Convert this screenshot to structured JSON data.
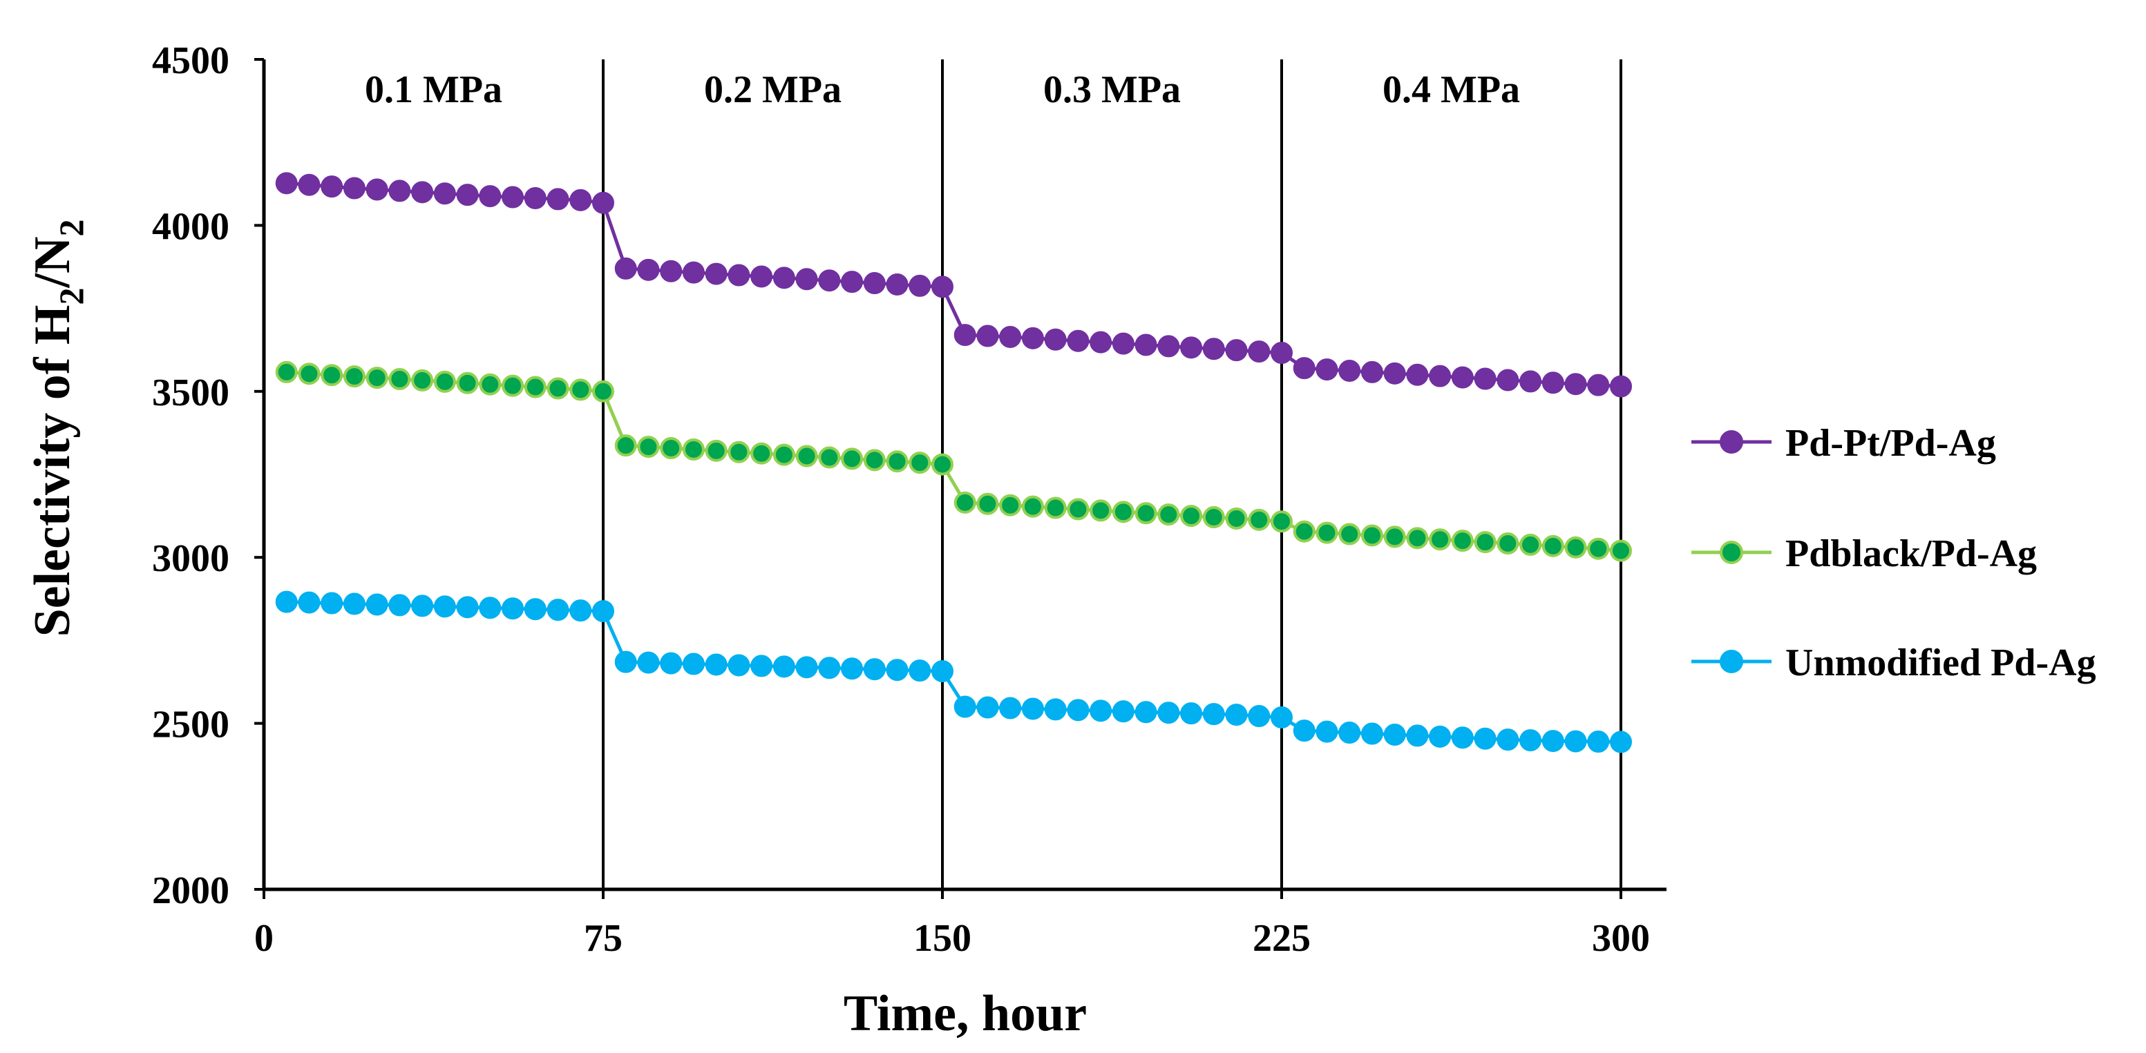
{
  "chart_data": {
    "type": "line",
    "ylabel": "Selectivity of  H2/N2",
    "ylabel_parts": {
      "a": "Selectivity of  H",
      "b": "2",
      "c": "/N",
      "d": "2"
    },
    "xlabel": "Time, hour",
    "xlim": [
      0,
      300
    ],
    "ylim": [
      2000,
      4500
    ],
    "x_ticks": [
      "0",
      "75",
      "150",
      "225",
      "300"
    ],
    "y_ticks": [
      "2000",
      "2500",
      "3000",
      "3500",
      "4000",
      "4500"
    ],
    "grid": false,
    "vlines": [
      75,
      150,
      225,
      300
    ],
    "regions": [
      {
        "label": "0.1 MPa",
        "x": 37.5
      },
      {
        "label": "0.2 MPa",
        "x": 112.5
      },
      {
        "label": "0.3 MPa",
        "x": 187.5
      },
      {
        "label": "0.4 MPa",
        "x": 262.5
      }
    ],
    "legend_position": "right",
    "x": [
      5,
      10,
      15,
      20,
      25,
      30,
      35,
      40,
      45,
      50,
      55,
      60,
      65,
      70,
      75,
      80,
      85,
      90,
      95,
      100,
      105,
      110,
      115,
      120,
      125,
      130,
      135,
      140,
      145,
      150,
      155,
      160,
      165,
      170,
      175,
      180,
      185,
      190,
      195,
      200,
      205,
      210,
      215,
      220,
      225,
      230,
      235,
      240,
      245,
      250,
      255,
      260,
      265,
      270,
      275,
      280,
      285,
      290,
      295,
      300
    ],
    "series": [
      {
        "name": "Pd-Pt/Pd-Ag",
        "color": "#7030a0",
        "edge": "#7030a0",
        "values": [
          4127,
          4122,
          4117,
          4112,
          4108,
          4104,
          4100,
          4096,
          4092,
          4088,
          4085,
          4082,
          4079,
          4076,
          4068,
          3870,
          3866,
          3862,
          3858,
          3854,
          3850,
          3846,
          3842,
          3838,
          3834,
          3830,
          3826,
          3822,
          3818,
          3815,
          3670,
          3667,
          3664,
          3660,
          3656,
          3652,
          3648,
          3644,
          3640,
          3636,
          3632,
          3628,
          3624,
          3620,
          3616,
          3570,
          3566,
          3562,
          3558,
          3554,
          3550,
          3546,
          3542,
          3538,
          3534,
          3530,
          3526,
          3522,
          3519,
          3515
        ]
      },
      {
        "name": "Pdblack/Pd-Ag",
        "color": "#00a550",
        "edge": "#92d050",
        "values": [
          3558,
          3553,
          3549,
          3545,
          3541,
          3537,
          3533,
          3529,
          3525,
          3521,
          3517,
          3513,
          3509,
          3505,
          3500,
          3337,
          3333,
          3329,
          3325,
          3321,
          3317,
          3313,
          3309,
          3305,
          3301,
          3297,
          3293,
          3289,
          3285,
          3280,
          3165,
          3161,
          3157,
          3153,
          3149,
          3145,
          3141,
          3137,
          3133,
          3129,
          3125,
          3121,
          3117,
          3113,
          3108,
          3078,
          3074,
          3070,
          3066,
          3062,
          3058,
          3054,
          3050,
          3046,
          3042,
          3038,
          3034,
          3030,
          3026,
          3020
        ]
      },
      {
        "name": "Unmodified Pd-Ag",
        "color": "#00b0f0",
        "edge": "#00b0f0",
        "values": [
          2866,
          2864,
          2862,
          2860,
          2858,
          2856,
          2854,
          2852,
          2850,
          2848,
          2846,
          2844,
          2842,
          2840,
          2838,
          2685,
          2683,
          2681,
          2679,
          2677,
          2675,
          2673,
          2671,
          2669,
          2667,
          2665,
          2663,
          2661,
          2659,
          2657,
          2550,
          2548,
          2546,
          2544,
          2542,
          2540,
          2538,
          2536,
          2534,
          2532,
          2530,
          2528,
          2526,
          2522,
          2518,
          2478,
          2475,
          2472,
          2469,
          2466,
          2463,
          2460,
          2457,
          2454,
          2451,
          2449,
          2447,
          2446,
          2445,
          2444
        ]
      }
    ]
  }
}
